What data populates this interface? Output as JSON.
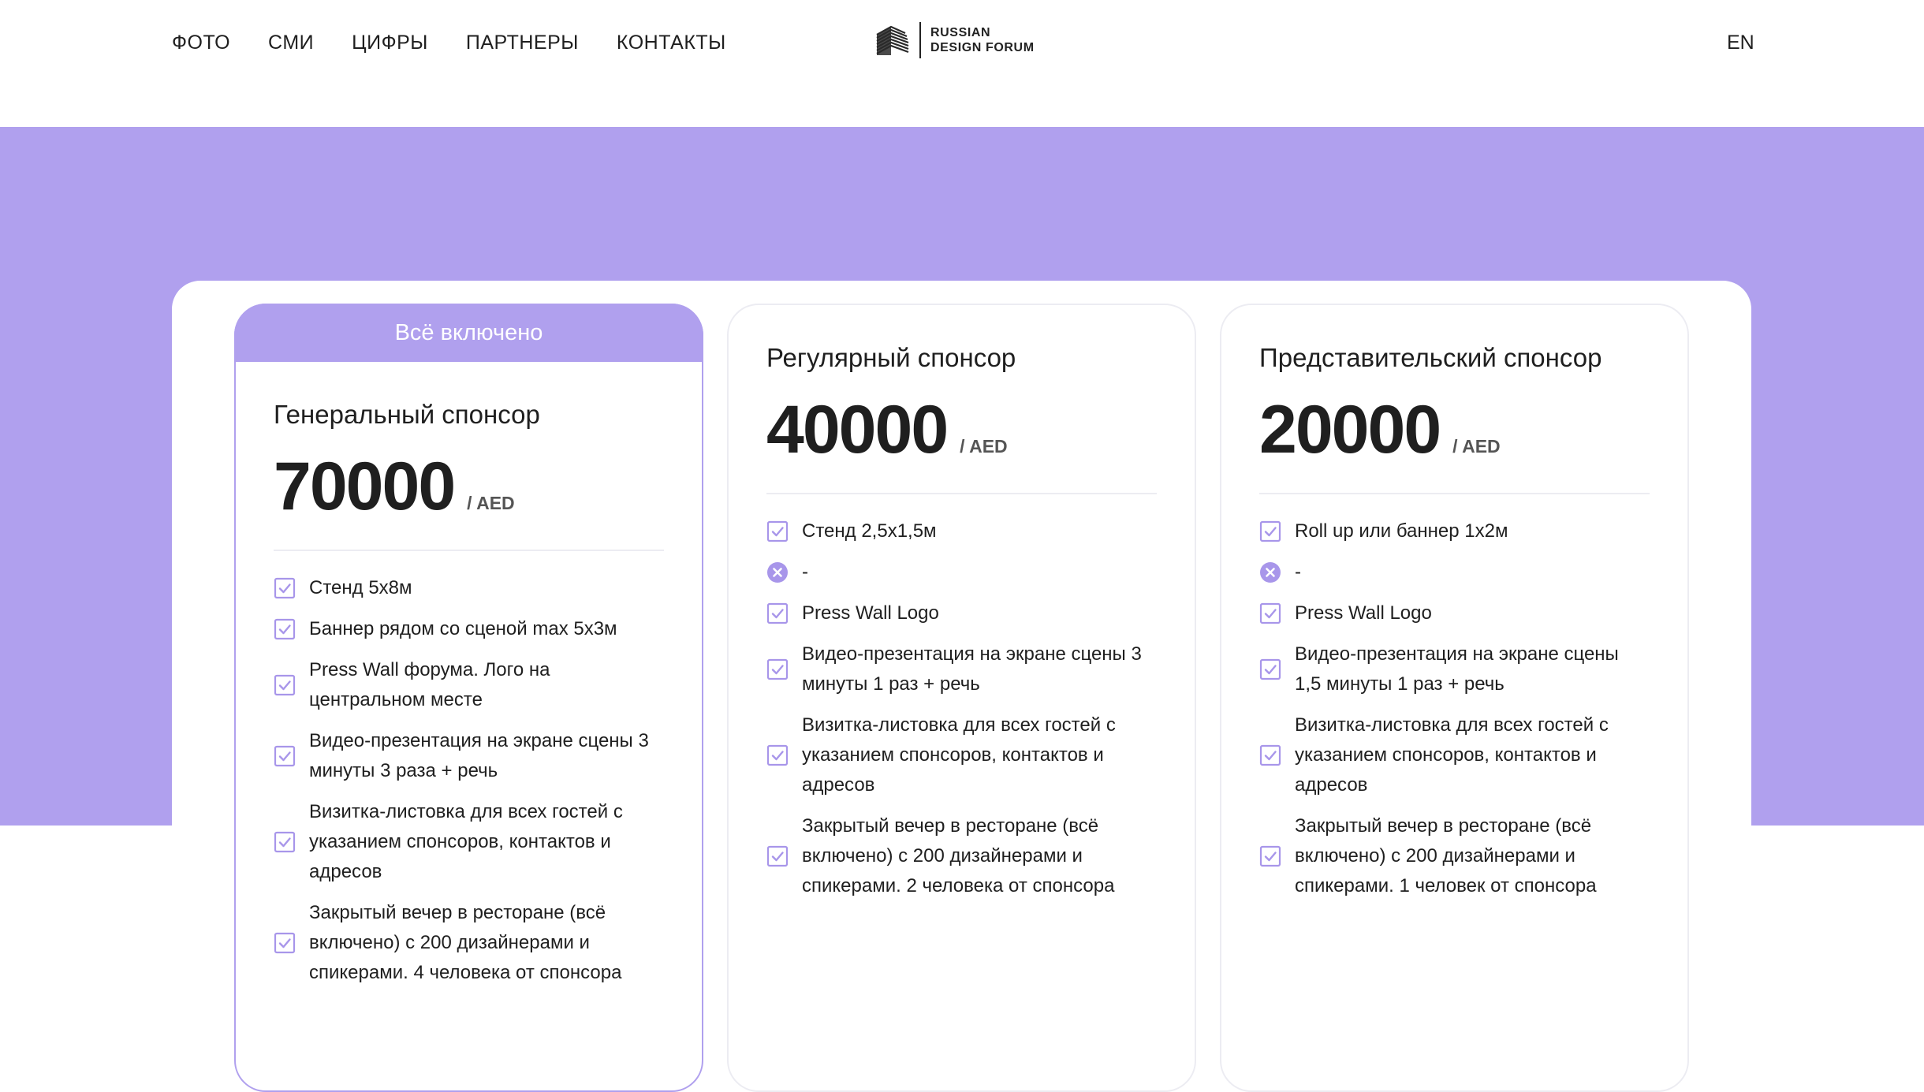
{
  "nav": {
    "items": [
      "ФОТО",
      "СМИ",
      "ЦИФРЫ",
      "ПАРТНЕРЫ",
      "КОНТАКТЫ"
    ],
    "lang": "EN"
  },
  "logo": {
    "line1": "RUSSIAN",
    "line2": "DESIGN FORUM",
    "icon": "striped-building-icon"
  },
  "colors": {
    "accent": "#b0a0ee",
    "text": "#1f1f1f",
    "border": "#ececf2"
  },
  "cards": [
    {
      "tab": "Всё включено",
      "title": "Генеральный спонсор",
      "price": "70000",
      "currency": "/ AED",
      "features": [
        {
          "icon": "check",
          "text": "Стенд 5х8м"
        },
        {
          "icon": "check",
          "text": "Баннер рядом со сценой max 5x3м"
        },
        {
          "icon": "check",
          "text": "Press Wall форума. Лого на центральном месте"
        },
        {
          "icon": "check",
          "text": "Видео-презентация на экране сцены 3 минуты 3 раза + речь"
        },
        {
          "icon": "check",
          "text": "Визитка-листовка для всех гостей с указанием спонсоров, контактов и адресов"
        },
        {
          "icon": "check",
          "text": "Закрытый вечер в ресторане (всё включено) с 200 дизайнерами и спикерами. 4 человека от спонсора"
        }
      ]
    },
    {
      "title": "Регулярный спонсор",
      "price": "40000",
      "currency": "/ AED",
      "features": [
        {
          "icon": "check",
          "text": "Стенд 2,5х1,5м"
        },
        {
          "icon": "cross",
          "text": "-"
        },
        {
          "icon": "check",
          "text": "Press Wall Logo"
        },
        {
          "icon": "check",
          "text": "Видео-презентация на экране сцены 3 минуты 1 раз + речь"
        },
        {
          "icon": "check",
          "text": "Визитка-листовка для всех гостей с указанием спонсоров, контактов и адресов"
        },
        {
          "icon": "check",
          "text": "Закрытый вечер в ресторане (всё включено) с 200 дизайнерами и спикерами. 2 человека от спонсора"
        }
      ]
    },
    {
      "title": "Представительский спонсор",
      "price": "20000",
      "currency": "/ AED",
      "features": [
        {
          "icon": "check",
          "text": "Roll up или баннер 1х2м"
        },
        {
          "icon": "cross",
          "text": "-"
        },
        {
          "icon": "check",
          "text": "Press Wall Logo"
        },
        {
          "icon": "check",
          "text": "Видео-презентация на экране сцены 1,5 минуты 1 раз + речь"
        },
        {
          "icon": "check",
          "text": "Визитка-листовка для всех гостей с указанием спонсоров, контактов и адресов"
        },
        {
          "icon": "check",
          "text": "Закрытый вечер в ресторане (всё включено) с 200 дизайнерами и спикерами. 1 человек от спонсора"
        }
      ]
    }
  ]
}
